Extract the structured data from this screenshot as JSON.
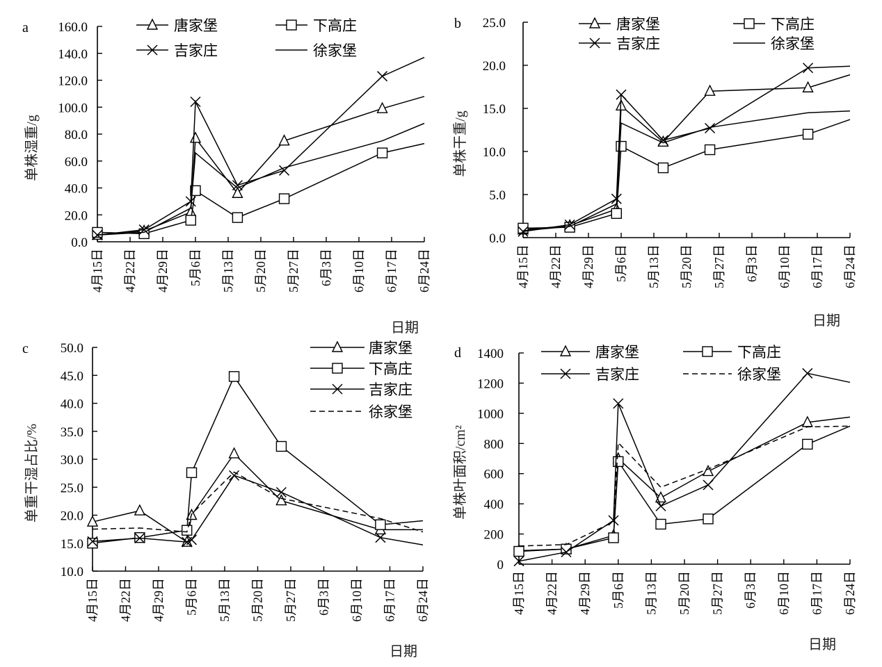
{
  "figure": {
    "legend_names": [
      "唐家堡",
      "下高庄",
      "吉家庄",
      "徐家堡"
    ],
    "x_tick_labels": [
      "4月15日",
      "4月22日",
      "4月29日",
      "5月6日",
      "5月13日",
      "5月20日",
      "5月27日",
      "6月3日",
      "6月10日",
      "6月17日",
      "6月24日"
    ],
    "x_title": "日期"
  },
  "chart_data": [
    {
      "panel": "a",
      "type": "line",
      "title": "",
      "xlabel": "日期",
      "ylabel": "单株湿重/g",
      "x_unit": "days since 4月15日",
      "x": [
        0,
        10,
        20,
        21,
        30,
        40,
        61,
        70
      ],
      "xlim": [
        0,
        70
      ],
      "ylim": [
        0,
        160
      ],
      "yticks": [
        "0.0",
        "20.0",
        "40.0",
        "60.0",
        "80.0",
        "100.0",
        "120.0",
        "140.0",
        "160.0"
      ],
      "ytick_values": [
        0,
        20,
        40,
        60,
        80,
        100,
        120,
        140,
        160
      ],
      "legend_position": "top",
      "series": [
        {
          "name": "唐家堡",
          "marker": "triangle",
          "style": "solid",
          "values": [
            5,
            8,
            22,
            77,
            36,
            75,
            99,
            108
          ],
          "marker_mask": [
            1,
            1,
            1,
            1,
            1,
            1,
            1,
            0
          ]
        },
        {
          "name": "下高庄",
          "marker": "square",
          "style": "solid",
          "values": [
            7,
            6,
            16,
            38,
            18,
            32,
            66,
            73
          ],
          "marker_mask": [
            1,
            1,
            1,
            1,
            1,
            1,
            1,
            0
          ]
        },
        {
          "name": "吉家庄",
          "marker": "x",
          "style": "solid",
          "values": [
            5,
            9,
            30,
            104,
            42,
            53,
            123,
            137
          ],
          "marker_mask": [
            1,
            1,
            1,
            1,
            1,
            1,
            1,
            0
          ]
        },
        {
          "name": "徐家堡",
          "marker": "none",
          "style": "solid",
          "values": [
            5,
            7,
            25,
            66,
            40,
            55,
            75,
            88
          ],
          "marker_mask": [
            0,
            0,
            0,
            0,
            0,
            0,
            0,
            0
          ]
        }
      ]
    },
    {
      "panel": "b",
      "type": "line",
      "title": "",
      "xlabel": "日期",
      "ylabel": "单株干重/g",
      "x_unit": "days since 4月15日",
      "x": [
        0,
        10,
        20,
        21,
        30,
        40,
        61,
        70
      ],
      "xlim": [
        0,
        70
      ],
      "ylim": [
        0,
        25
      ],
      "yticks": [
        "0.0",
        "5.0",
        "10.0",
        "15.0",
        "20.0",
        "25.0"
      ],
      "ytick_values": [
        0,
        5,
        10,
        15,
        20,
        25
      ],
      "legend_position": "top",
      "series": [
        {
          "name": "唐家堡",
          "marker": "triangle",
          "style": "solid",
          "values": [
            0.9,
            1.4,
            3.3,
            15.3,
            11.1,
            17.0,
            17.4,
            18.9
          ],
          "marker_mask": [
            1,
            1,
            1,
            1,
            1,
            1,
            1,
            0
          ]
        },
        {
          "name": "下高庄",
          "marker": "square",
          "style": "solid",
          "values": [
            1.1,
            1.2,
            2.8,
            10.6,
            8.1,
            10.2,
            12.0,
            13.7
          ],
          "marker_mask": [
            1,
            1,
            1,
            1,
            1,
            1,
            1,
            0
          ]
        },
        {
          "name": "吉家庄",
          "marker": "x",
          "style": "solid",
          "values": [
            0.7,
            1.5,
            4.5,
            16.6,
            11.3,
            12.7,
            19.7,
            19.9
          ],
          "marker_mask": [
            1,
            1,
            1,
            1,
            1,
            1,
            1,
            0
          ]
        },
        {
          "name": "徐家堡",
          "marker": "none",
          "style": "solid",
          "values": [
            0.8,
            1.3,
            3.9,
            13.3,
            11.0,
            12.8,
            14.5,
            14.7
          ],
          "marker_mask": [
            0,
            0,
            0,
            0,
            0,
            0,
            0,
            0
          ]
        }
      ]
    },
    {
      "panel": "c",
      "type": "line",
      "title": "",
      "xlabel": "日期",
      "ylabel": "单重干湿占比/%",
      "x_unit": "days since 4月15日",
      "x": [
        0,
        10,
        20,
        21,
        30,
        40,
        61,
        70
      ],
      "xlim": [
        0,
        70
      ],
      "ylim": [
        10,
        50
      ],
      "yticks": [
        "10.0",
        "15.0",
        "20.0",
        "25.0",
        "30.0",
        "35.0",
        "40.0",
        "45.0",
        "50.0"
      ],
      "ytick_values": [
        10,
        15,
        20,
        25,
        30,
        35,
        40,
        45,
        50
      ],
      "legend_position": "top-right",
      "series": [
        {
          "name": "唐家堡",
          "marker": "triangle",
          "style": "solid",
          "values": [
            18.8,
            20.8,
            15.2,
            20.0,
            31.0,
            22.6,
            17.4,
            17.4
          ],
          "marker_mask": [
            1,
            1,
            1,
            1,
            1,
            1,
            1,
            0
          ]
        },
        {
          "name": "下高庄",
          "marker": "square",
          "style": "solid",
          "values": [
            15.0,
            16.0,
            17.3,
            27.6,
            44.8,
            32.3,
            18.3,
            19.0
          ],
          "marker_mask": [
            1,
            1,
            1,
            1,
            1,
            1,
            1,
            0
          ]
        },
        {
          "name": "吉家庄",
          "marker": "x",
          "style": "solid",
          "values": [
            15.3,
            15.9,
            15.2,
            15.6,
            27.1,
            24.1,
            16.0,
            14.7
          ],
          "marker_mask": [
            1,
            1,
            1,
            1,
            1,
            1,
            1,
            0
          ]
        },
        {
          "name": "徐家堡",
          "marker": "none",
          "style": "dashed",
          "values": [
            17.5,
            17.7,
            17.0,
            20.2,
            27.7,
            23.0,
            19.4,
            17.0
          ],
          "marker_mask": [
            0,
            0,
            0,
            0,
            0,
            0,
            0,
            0
          ]
        }
      ]
    },
    {
      "panel": "d",
      "type": "line",
      "title": "",
      "xlabel": "日期",
      "ylabel": "单株叶面积/cm²",
      "x_unit": "days since 4月15日",
      "x": [
        0,
        10,
        20,
        21,
        30,
        40,
        61,
        70
      ],
      "xlim": [
        0,
        70
      ],
      "ylim": [
        0,
        1400
      ],
      "yticks": [
        "0",
        "200",
        "400",
        "600",
        "800",
        "1000",
        "1200",
        "1400"
      ],
      "ytick_values": [
        0,
        200,
        400,
        600,
        800,
        1000,
        1200,
        1400
      ],
      "legend_position": "top",
      "series": [
        {
          "name": "唐家堡",
          "marker": "triangle",
          "style": "solid",
          "values": [
            90,
            100,
            190,
            700,
            440,
            615,
            940,
            975
          ],
          "marker_mask": [
            1,
            1,
            1,
            1,
            1,
            1,
            1,
            0
          ]
        },
        {
          "name": "下高庄",
          "marker": "square",
          "style": "solid",
          "values": [
            85,
            100,
            175,
            680,
            265,
            300,
            795,
            915
          ],
          "marker_mask": [
            1,
            1,
            1,
            1,
            1,
            1,
            1,
            0
          ]
        },
        {
          "name": "吉家庄",
          "marker": "x",
          "style": "solid",
          "values": [
            20,
            80,
            290,
            1065,
            385,
            525,
            1265,
            1205
          ],
          "marker_mask": [
            1,
            1,
            1,
            1,
            1,
            1,
            1,
            0
          ]
        },
        {
          "name": "徐家堡",
          "marker": "none",
          "style": "dashed",
          "values": [
            120,
            130,
            280,
            805,
            510,
            630,
            910,
            915
          ],
          "marker_mask": [
            0,
            0,
            0,
            0,
            0,
            0,
            0,
            0
          ]
        }
      ]
    }
  ]
}
